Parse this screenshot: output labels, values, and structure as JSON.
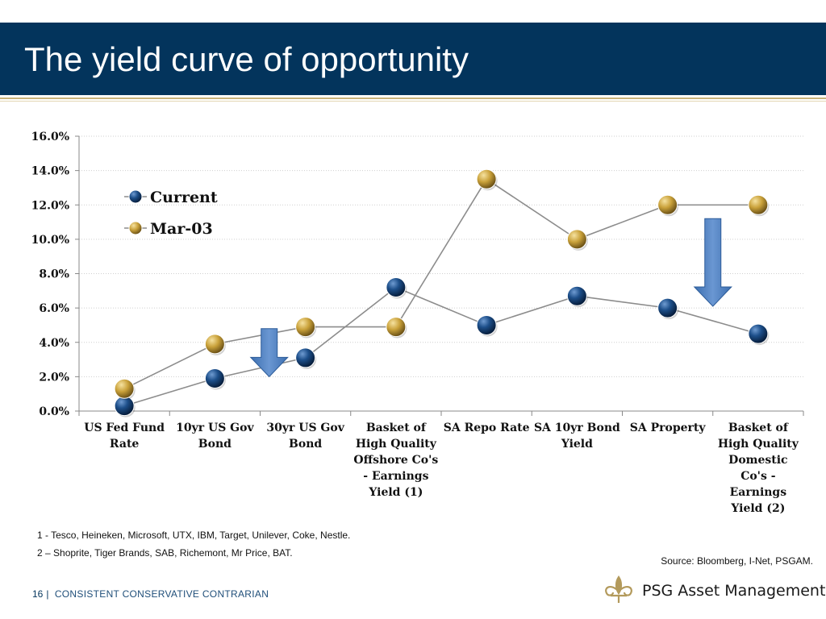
{
  "slide": {
    "title": "The yield curve of opportunity",
    "notes": [
      "1 - Tesco, Heineken, Microsoft, UTX, IBM, Target, Unilever, Coke, Nestle.",
      "2 – Shoprite, Tiger Brands, SAB, Richemont, Mr Price, BAT."
    ],
    "source": "Source: Bloomberg, I-Net, PSGAM.",
    "footer": {
      "page_number": "16",
      "tagline": "CONSISTENT CONSERVATIVE CONTRARIAN"
    },
    "logo": {
      "text": "PSG Asset Management",
      "icon": "fleur-de-lis-icon",
      "color": "#b39a5c"
    }
  },
  "chart_data": {
    "type": "line",
    "categories": [
      [
        "US Fed Fund",
        "Rate"
      ],
      [
        "10yr US Gov",
        "Bond"
      ],
      [
        "30yr US Gov",
        "Bond"
      ],
      [
        "Basket of",
        "High Quality",
        "Offshore Co's",
        "- Earnings",
        "Yield (1)"
      ],
      [
        "SA Repo Rate"
      ],
      [
        "SA 10yr Bond",
        "Yield"
      ],
      [
        "SA Property"
      ],
      [
        "Basket of",
        "High Quality",
        "Domestic",
        "Co's -",
        "Earnings",
        "Yield (2)"
      ]
    ],
    "series": [
      {
        "name": "Current",
        "values": [
          0.3,
          1.9,
          3.1,
          7.2,
          5.0,
          6.7,
          6.0,
          4.5
        ],
        "color": "#0f3a6b"
      },
      {
        "name": "Mar-03",
        "values": [
          1.3,
          3.9,
          4.9,
          4.9,
          13.5,
          10.0,
          12.0,
          12.0
        ],
        "color": "#c9a13a"
      }
    ],
    "ylim": [
      0,
      16
    ],
    "yticks": [
      "0.0%",
      "2.0%",
      "4.0%",
      "6.0%",
      "8.0%",
      "10.0%",
      "12.0%",
      "14.0%",
      "16.0%"
    ],
    "grid": true,
    "legend": "top-left",
    "annotations": [
      {
        "type": "down-arrow",
        "category_index": 1.6,
        "from": 4.8,
        "to": 2.0,
        "color": "#4f81bd"
      },
      {
        "type": "down-arrow",
        "category_index": 6.5,
        "from": 11.2,
        "to": 6.1,
        "color": "#4f81bd"
      }
    ]
  }
}
